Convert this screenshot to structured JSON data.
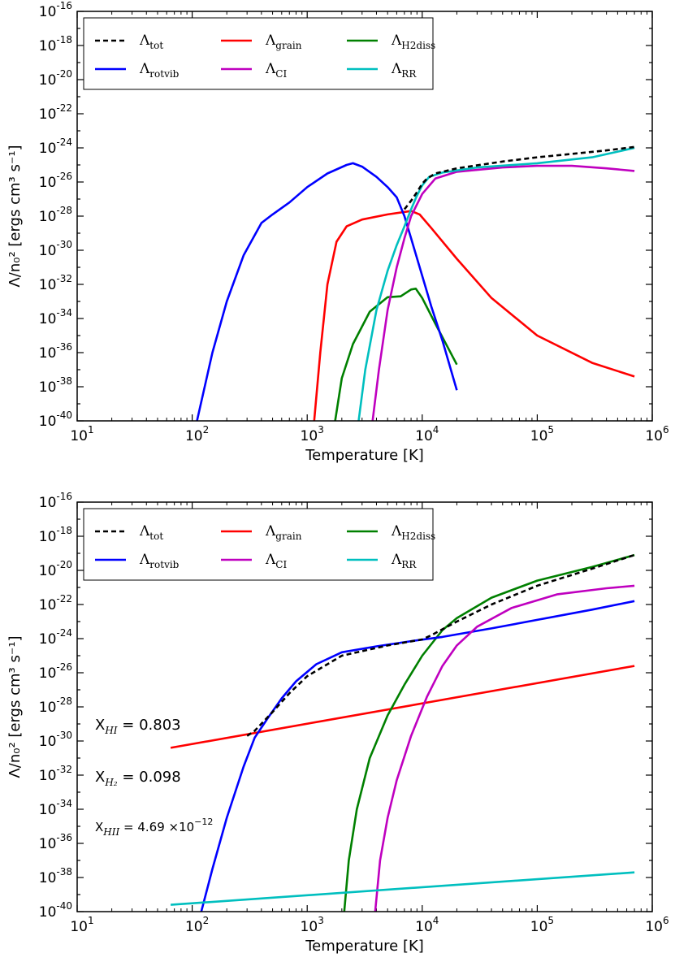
{
  "chart_data": [
    {
      "type": "line",
      "xscale": "log",
      "yscale": "log",
      "xlabel": "Temperature [K]",
      "ylabel": "Λ/n₀² [ergs cm³ s⁻¹]",
      "xlim": [
        10,
        1000000
      ],
      "ylim": [
        1e-40,
        1e-16
      ],
      "x_ticks": [
        {
          "base": "10",
          "exp": "1"
        },
        {
          "base": "10",
          "exp": "2"
        },
        {
          "base": "10",
          "exp": "3"
        },
        {
          "base": "10",
          "exp": "4"
        },
        {
          "base": "10",
          "exp": "5"
        },
        {
          "base": "10",
          "exp": "6"
        }
      ],
      "y_ticks": [
        {
          "base": "10",
          "exp": "-16"
        },
        {
          "base": "10",
          "exp": "-18"
        },
        {
          "base": "10",
          "exp": "-20"
        },
        {
          "base": "10",
          "exp": "-22"
        },
        {
          "base": "10",
          "exp": "-24"
        },
        {
          "base": "10",
          "exp": "-26"
        },
        {
          "base": "10",
          "exp": "-28"
        },
        {
          "base": "10",
          "exp": "-30"
        },
        {
          "base": "10",
          "exp": "-32"
        },
        {
          "base": "10",
          "exp": "-34"
        },
        {
          "base": "10",
          "exp": "-36"
        },
        {
          "base": "10",
          "exp": "-38"
        },
        {
          "base": "10",
          "exp": "-40"
        }
      ],
      "legend_position": "top-left",
      "series": [
        {
          "name": "Λtot",
          "label_main": "Λ",
          "label_sub": "tot",
          "color": "#000000",
          "dashed": true,
          "points": [
            [
              7000,
              -27.6
            ],
            [
              8000,
              -27.1
            ],
            [
              9000,
              -26.6
            ],
            [
              10000,
              -26.1
            ],
            [
              11000,
              -25.8
            ],
            [
              13000,
              -25.5
            ],
            [
              20000,
              -25.2
            ],
            [
              50000,
              -24.8
            ],
            [
              100000,
              -24.55
            ],
            [
              200000,
              -24.35
            ],
            [
              400000,
              -24.15
            ],
            [
              700000,
              -23.95
            ]
          ]
        },
        {
          "name": "Λgrain",
          "label_main": "Λ",
          "label_sub": "grain",
          "color": "#ff0000",
          "dashed": false,
          "points": [
            [
              1150,
              -40
            ],
            [
              1300,
              -36
            ],
            [
              1500,
              -32
            ],
            [
              1800,
              -29.5
            ],
            [
              2200,
              -28.6
            ],
            [
              3000,
              -28.2
            ],
            [
              5000,
              -27.9
            ],
            [
              8000,
              -27.7
            ],
            [
              9500,
              -27.9
            ],
            [
              12000,
              -28.7
            ],
            [
              20000,
              -30.5
            ],
            [
              40000,
              -32.8
            ],
            [
              100000,
              -35
            ],
            [
              300000,
              -36.6
            ],
            [
              700000,
              -37.4
            ]
          ]
        },
        {
          "name": "ΛH2diss",
          "label_main": "Λ",
          "label_sub": "H2diss",
          "color": "#008000",
          "dashed": false,
          "points": [
            [
              1750,
              -40
            ],
            [
              2000,
              -37.5
            ],
            [
              2500,
              -35.5
            ],
            [
              3500,
              -33.6
            ],
            [
              5000,
              -32.75
            ],
            [
              6500,
              -32.7
            ],
            [
              8000,
              -32.3
            ],
            [
              8800,
              -32.25
            ],
            [
              10000,
              -32.8
            ],
            [
              13000,
              -34.3
            ],
            [
              20000,
              -36.7
            ]
          ]
        },
        {
          "name": "Λrotvib",
          "label_main": "Λ",
          "label_sub": "rotvib",
          "color": "#0000ff",
          "dashed": false,
          "points": [
            [
              110,
              -40
            ],
            [
              150,
              -36
            ],
            [
              200,
              -33
            ],
            [
              280,
              -30.3
            ],
            [
              400,
              -28.4
            ],
            [
              500,
              -27.9
            ],
            [
              700,
              -27.2
            ],
            [
              1000,
              -26.3
            ],
            [
              1500,
              -25.5
            ],
            [
              2200,
              -25
            ],
            [
              2500,
              -24.9
            ],
            [
              3000,
              -25.1
            ],
            [
              4000,
              -25.7
            ],
            [
              5000,
              -26.3
            ],
            [
              6000,
              -26.9
            ],
            [
              7000,
              -28
            ],
            [
              8000,
              -29.3
            ],
            [
              10000,
              -31.5
            ],
            [
              12000,
              -33.3
            ],
            [
              15000,
              -35.3
            ],
            [
              20000,
              -38.2
            ]
          ]
        },
        {
          "name": "ΛCI",
          "label_main": "Λ",
          "label_sub": "CI",
          "color": "#bf00bf",
          "dashed": false,
          "points": [
            [
              3700,
              -40
            ],
            [
              4200,
              -37
            ],
            [
              5000,
              -33.5
            ],
            [
              6000,
              -31
            ],
            [
              7000,
              -29.3
            ],
            [
              8000,
              -28
            ],
            [
              10000,
              -26.7
            ],
            [
              13000,
              -25.8
            ],
            [
              20000,
              -25.4
            ],
            [
              50000,
              -25.15
            ],
            [
              100000,
              -25.05
            ],
            [
              200000,
              -25.05
            ],
            [
              400000,
              -25.2
            ],
            [
              700000,
              -25.35
            ]
          ]
        },
        {
          "name": "ΛRR",
          "label_main": "Λ",
          "label_sub": "RR",
          "color": "#00bfbf",
          "dashed": false,
          "points": [
            [
              2800,
              -40
            ],
            [
              3200,
              -37
            ],
            [
              4000,
              -33.5
            ],
            [
              5000,
              -31.2
            ],
            [
              6000,
              -29.7
            ],
            [
              7000,
              -28.6
            ],
            [
              8000,
              -27.6
            ],
            [
              9000,
              -26.8
            ],
            [
              10000,
              -26.2
            ],
            [
              11500,
              -25.7
            ],
            [
              15000,
              -25.45
            ],
            [
              30000,
              -25.15
            ],
            [
              100000,
              -24.9
            ],
            [
              300000,
              -24.55
            ],
            [
              700000,
              -24.0
            ]
          ]
        }
      ]
    },
    {
      "type": "line",
      "xscale": "log",
      "yscale": "log",
      "xlabel": "Temperature [K]",
      "ylabel": "Λ/n₀² [ergs cm³ s⁻¹]",
      "xlim": [
        10,
        1000000
      ],
      "ylim": [
        1e-40,
        1e-16
      ],
      "x_ticks": [
        {
          "base": "10",
          "exp": "1"
        },
        {
          "base": "10",
          "exp": "2"
        },
        {
          "base": "10",
          "exp": "3"
        },
        {
          "base": "10",
          "exp": "4"
        },
        {
          "base": "10",
          "exp": "5"
        },
        {
          "base": "10",
          "exp": "6"
        }
      ],
      "y_ticks": [
        {
          "base": "10",
          "exp": "-16"
        },
        {
          "base": "10",
          "exp": "-18"
        },
        {
          "base": "10",
          "exp": "-20"
        },
        {
          "base": "10",
          "exp": "-22"
        },
        {
          "base": "10",
          "exp": "-24"
        },
        {
          "base": "10",
          "exp": "-26"
        },
        {
          "base": "10",
          "exp": "-28"
        },
        {
          "base": "10",
          "exp": "-30"
        },
        {
          "base": "10",
          "exp": "-32"
        },
        {
          "base": "10",
          "exp": "-34"
        },
        {
          "base": "10",
          "exp": "-36"
        },
        {
          "base": "10",
          "exp": "-38"
        },
        {
          "base": "10",
          "exp": "-40"
        }
      ],
      "legend_position": "top-left",
      "annotations": [
        {
          "prefix": "X",
          "sub": "HI",
          "value": " = 0.803",
          "sup": ""
        },
        {
          "prefix": "X",
          "sub": "H₂",
          "value": " = 0.098",
          "sup": ""
        },
        {
          "prefix": "X",
          "sub": "HII",
          "value": " = 4.69 ×10",
          "sup": "−12"
        }
      ],
      "series": [
        {
          "name": "Λtot",
          "label_main": "Λ",
          "label_sub": "tot",
          "color": "#000000",
          "dashed": true,
          "points": [
            [
              300,
              -29.7
            ],
            [
              350,
              -29.4
            ],
            [
              500,
              -28.3
            ],
            [
              700,
              -27.2
            ],
            [
              1000,
              -26.2
            ],
            [
              2000,
              -25
            ],
            [
              5000,
              -24.4
            ],
            [
              10000,
              -24.05
            ],
            [
              12000,
              -23.8
            ],
            [
              20000,
              -23
            ],
            [
              40000,
              -22
            ],
            [
              100000,
              -20.9
            ],
            [
              300000,
              -19.9
            ],
            [
              700000,
              -19.1
            ]
          ]
        },
        {
          "name": "Λgrain",
          "label_main": "Λ",
          "label_sub": "grain",
          "color": "#ff0000",
          "dashed": false,
          "points": [
            [
              65,
              -30.4
            ],
            [
              700000,
              -25.6
            ]
          ]
        },
        {
          "name": "ΛH2diss",
          "label_main": "Λ",
          "label_sub": "H2diss",
          "color": "#008000",
          "dashed": false,
          "points": [
            [
              2100,
              -40
            ],
            [
              2300,
              -37
            ],
            [
              2700,
              -34
            ],
            [
              3500,
              -31
            ],
            [
              5000,
              -28.5
            ],
            [
              7000,
              -26.7
            ],
            [
              10000,
              -25
            ],
            [
              15000,
              -23.5
            ],
            [
              20000,
              -22.8
            ],
            [
              40000,
              -21.6
            ],
            [
              100000,
              -20.6
            ],
            [
              300000,
              -19.8
            ],
            [
              700000,
              -19.1
            ]
          ]
        },
        {
          "name": "Λrotvib",
          "label_main": "Λ",
          "label_sub": "rotvib",
          "color": "#0000ff",
          "dashed": false,
          "points": [
            [
              120,
              -40
            ],
            [
              150,
              -37.5
            ],
            [
              200,
              -34.5
            ],
            [
              280,
              -31.5
            ],
            [
              350,
              -29.8
            ],
            [
              450,
              -28.7
            ],
            [
              600,
              -27.5
            ],
            [
              800,
              -26.5
            ],
            [
              1200,
              -25.5
            ],
            [
              2000,
              -24.8
            ],
            [
              4000,
              -24.45
            ],
            [
              8000,
              -24.15
            ],
            [
              15000,
              -23.9
            ],
            [
              40000,
              -23.4
            ],
            [
              100000,
              -22.9
            ],
            [
              300000,
              -22.3
            ],
            [
              700000,
              -21.8
            ]
          ]
        },
        {
          "name": "ΛCI",
          "label_main": "Λ",
          "label_sub": "CI",
          "color": "#bf00bf",
          "dashed": false,
          "points": [
            [
              3900,
              -40
            ],
            [
              4300,
              -37
            ],
            [
              5000,
              -34.5
            ],
            [
              6000,
              -32.3
            ],
            [
              8000,
              -29.7
            ],
            [
              11000,
              -27.4
            ],
            [
              15000,
              -25.6
            ],
            [
              20000,
              -24.4
            ],
            [
              30000,
              -23.3
            ],
            [
              60000,
              -22.2
            ],
            [
              150000,
              -21.4
            ],
            [
              400000,
              -21.05
            ],
            [
              700000,
              -20.9
            ]
          ]
        },
        {
          "name": "ΛRR",
          "label_main": "Λ",
          "label_sub": "RR",
          "color": "#00bfbf",
          "dashed": false,
          "points": [
            [
              65,
              -39.6
            ],
            [
              700000,
              -37.7
            ]
          ]
        }
      ]
    }
  ]
}
